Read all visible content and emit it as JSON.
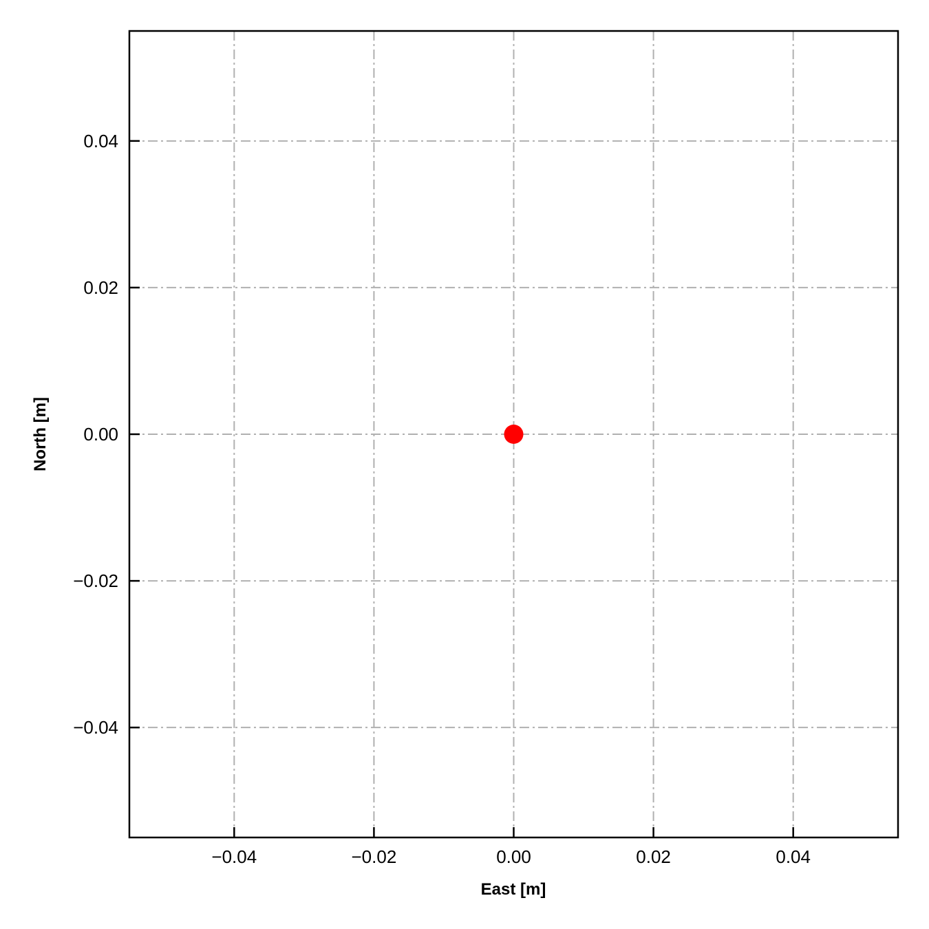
{
  "chart_data": {
    "type": "scatter",
    "title": "",
    "xlabel": "East [m]",
    "ylabel": "North [m]",
    "xlim": [
      -0.055,
      0.055
    ],
    "ylim": [
      -0.055,
      0.055
    ],
    "xticks": [
      -0.04,
      -0.02,
      0.0,
      0.02,
      0.04
    ],
    "yticks": [
      -0.04,
      -0.02,
      0.0,
      0.02,
      0.04
    ],
    "xtick_labels": [
      "−0.04",
      "−0.02",
      "0.00",
      "0.02",
      "0.04"
    ],
    "ytick_labels": [
      "−0.04",
      "−0.02",
      "0.00",
      "0.02",
      "0.04"
    ],
    "grid": true,
    "grid_style": "dash-dot",
    "grid_color": "#b0b0b0",
    "tick_direction": "in",
    "series": [
      {
        "x": [
          0.0
        ],
        "y": [
          0.0
        ],
        "color": "#ff0000",
        "marker": "circle"
      }
    ]
  }
}
